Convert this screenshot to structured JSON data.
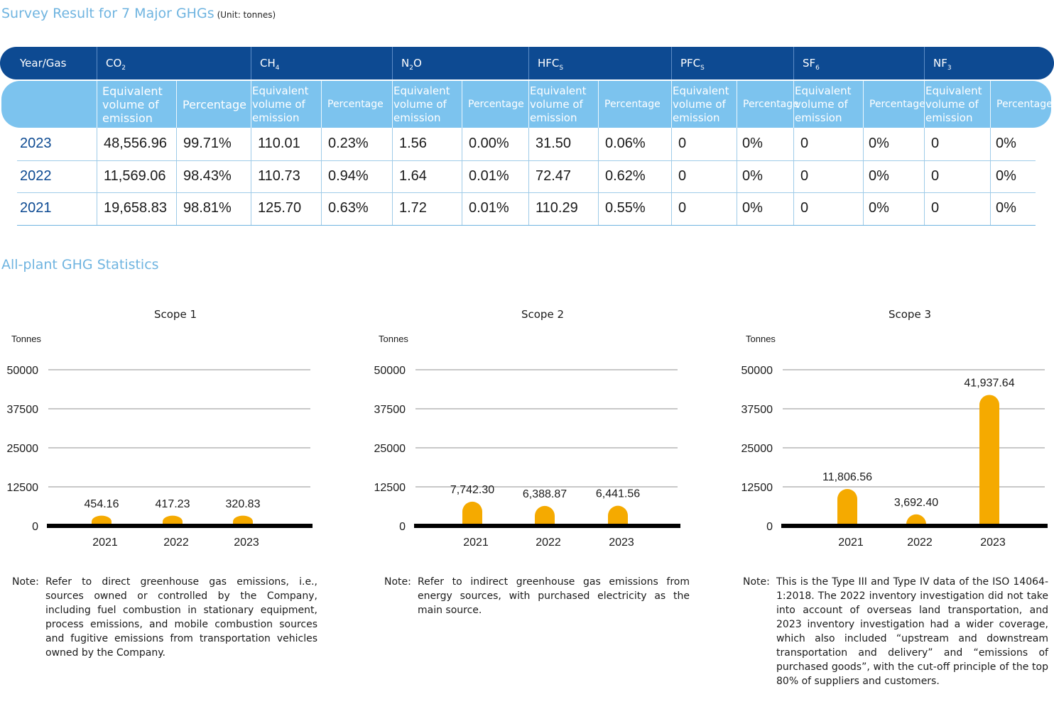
{
  "table_section": {
    "title": "Survey Result for 7 Major GHGs",
    "unit": "(Unit: tonnes)",
    "corner_label": "Year/Gas",
    "gases": [
      {
        "base": "CO",
        "sub": "2"
      },
      {
        "base": "CH",
        "sub": "4"
      },
      {
        "base": "N",
        "sub": "2",
        "tail": "O"
      },
      {
        "base": "HFC",
        "sub": "S"
      },
      {
        "base": "PFC",
        "sub": "S"
      },
      {
        "base": "SF",
        "sub": "6"
      },
      {
        "base": "NF",
        "sub": "3"
      }
    ],
    "sub_header_volume": "Equivalent volume of emission",
    "sub_header_percent": "Percentage",
    "rows": [
      {
        "year": "2023",
        "values": [
          "48,556.96",
          "99.71%",
          "110.01",
          "0.23%",
          "1.56",
          "0.00%",
          "31.50",
          "0.06%",
          "0",
          "0%",
          "0",
          "0%",
          "0",
          "0%"
        ]
      },
      {
        "year": "2022",
        "values": [
          "11,569.06",
          "98.43%",
          "110.73",
          "0.94%",
          "1.64",
          "0.01%",
          "72.47",
          "0.62%",
          "0",
          "0%",
          "0",
          "0%",
          "0",
          "0%"
        ]
      },
      {
        "year": "2021",
        "values": [
          "19,658.83",
          "98.81%",
          "125.70",
          "0.63%",
          "1.72",
          "0.01%",
          "110.29",
          "0.55%",
          "0",
          "0%",
          "0",
          "0%",
          "0",
          "0%"
        ]
      }
    ]
  },
  "stats_section": {
    "title": "All-plant GHG Statistics"
  },
  "chart_data": [
    {
      "type": "bar",
      "title": "Scope 1",
      "ylabel": "Tonnes",
      "categories": [
        "2021",
        "2022",
        "2023"
      ],
      "values": [
        454.16,
        417.23,
        320.83
      ],
      "labels": [
        "454.16",
        "417.23",
        "320.83"
      ],
      "ylim": [
        0,
        50000
      ],
      "yticks": [
        "0",
        "12500",
        "25000",
        "37500",
        "50000"
      ],
      "bar_color": "#f5aa00",
      "grid": true,
      "note_label": "Note:",
      "note": "Refer to direct greenhouse gas emissions, i.e., sources owned or controlled by the Company, including fuel combustion in stationary equipment, process emissions, and mobile combustion sources and fugitive emissions from transportation vehicles owned by the Company."
    },
    {
      "type": "bar",
      "title": "Scope 2",
      "ylabel": "Tonnes",
      "categories": [
        "2021",
        "2022",
        "2023"
      ],
      "values": [
        7742.3,
        6388.87,
        6441.56
      ],
      "labels": [
        "7,742.30",
        "6,388.87",
        "6,441.56"
      ],
      "ylim": [
        0,
        50000
      ],
      "yticks": [
        "0",
        "12500",
        "25000",
        "37500",
        "50000"
      ],
      "bar_color": "#f5aa00",
      "grid": true,
      "note_label": "Note:",
      "note": "Refer to indirect greenhouse gas emissions from energy sources, with purchased electricity as the main source."
    },
    {
      "type": "bar",
      "title": "Scope 3",
      "ylabel": "Tonnes",
      "categories": [
        "2021",
        "2022",
        "2023"
      ],
      "values": [
        11806.56,
        3692.4,
        41937.64
      ],
      "labels": [
        "11,806.56",
        "3,692.40",
        "41,937.64"
      ],
      "ylim": [
        0,
        50000
      ],
      "yticks": [
        "0",
        "12500",
        "25000",
        "37500",
        "50000"
      ],
      "bar_color": "#f5aa00",
      "grid": true,
      "note_label": "Note:",
      "note": "This is the Type III and Type IV data of the ISO 14064-1:2018. The 2022 inventory investigation did not take into account of overseas land transportation, and 2023 inventory investigation had a wider coverage, which also included “upstream and downstream transportation and delivery” and “emissions of purchased goods”, with the cut-off principle of the top 80% of suppliers and customers."
    }
  ]
}
